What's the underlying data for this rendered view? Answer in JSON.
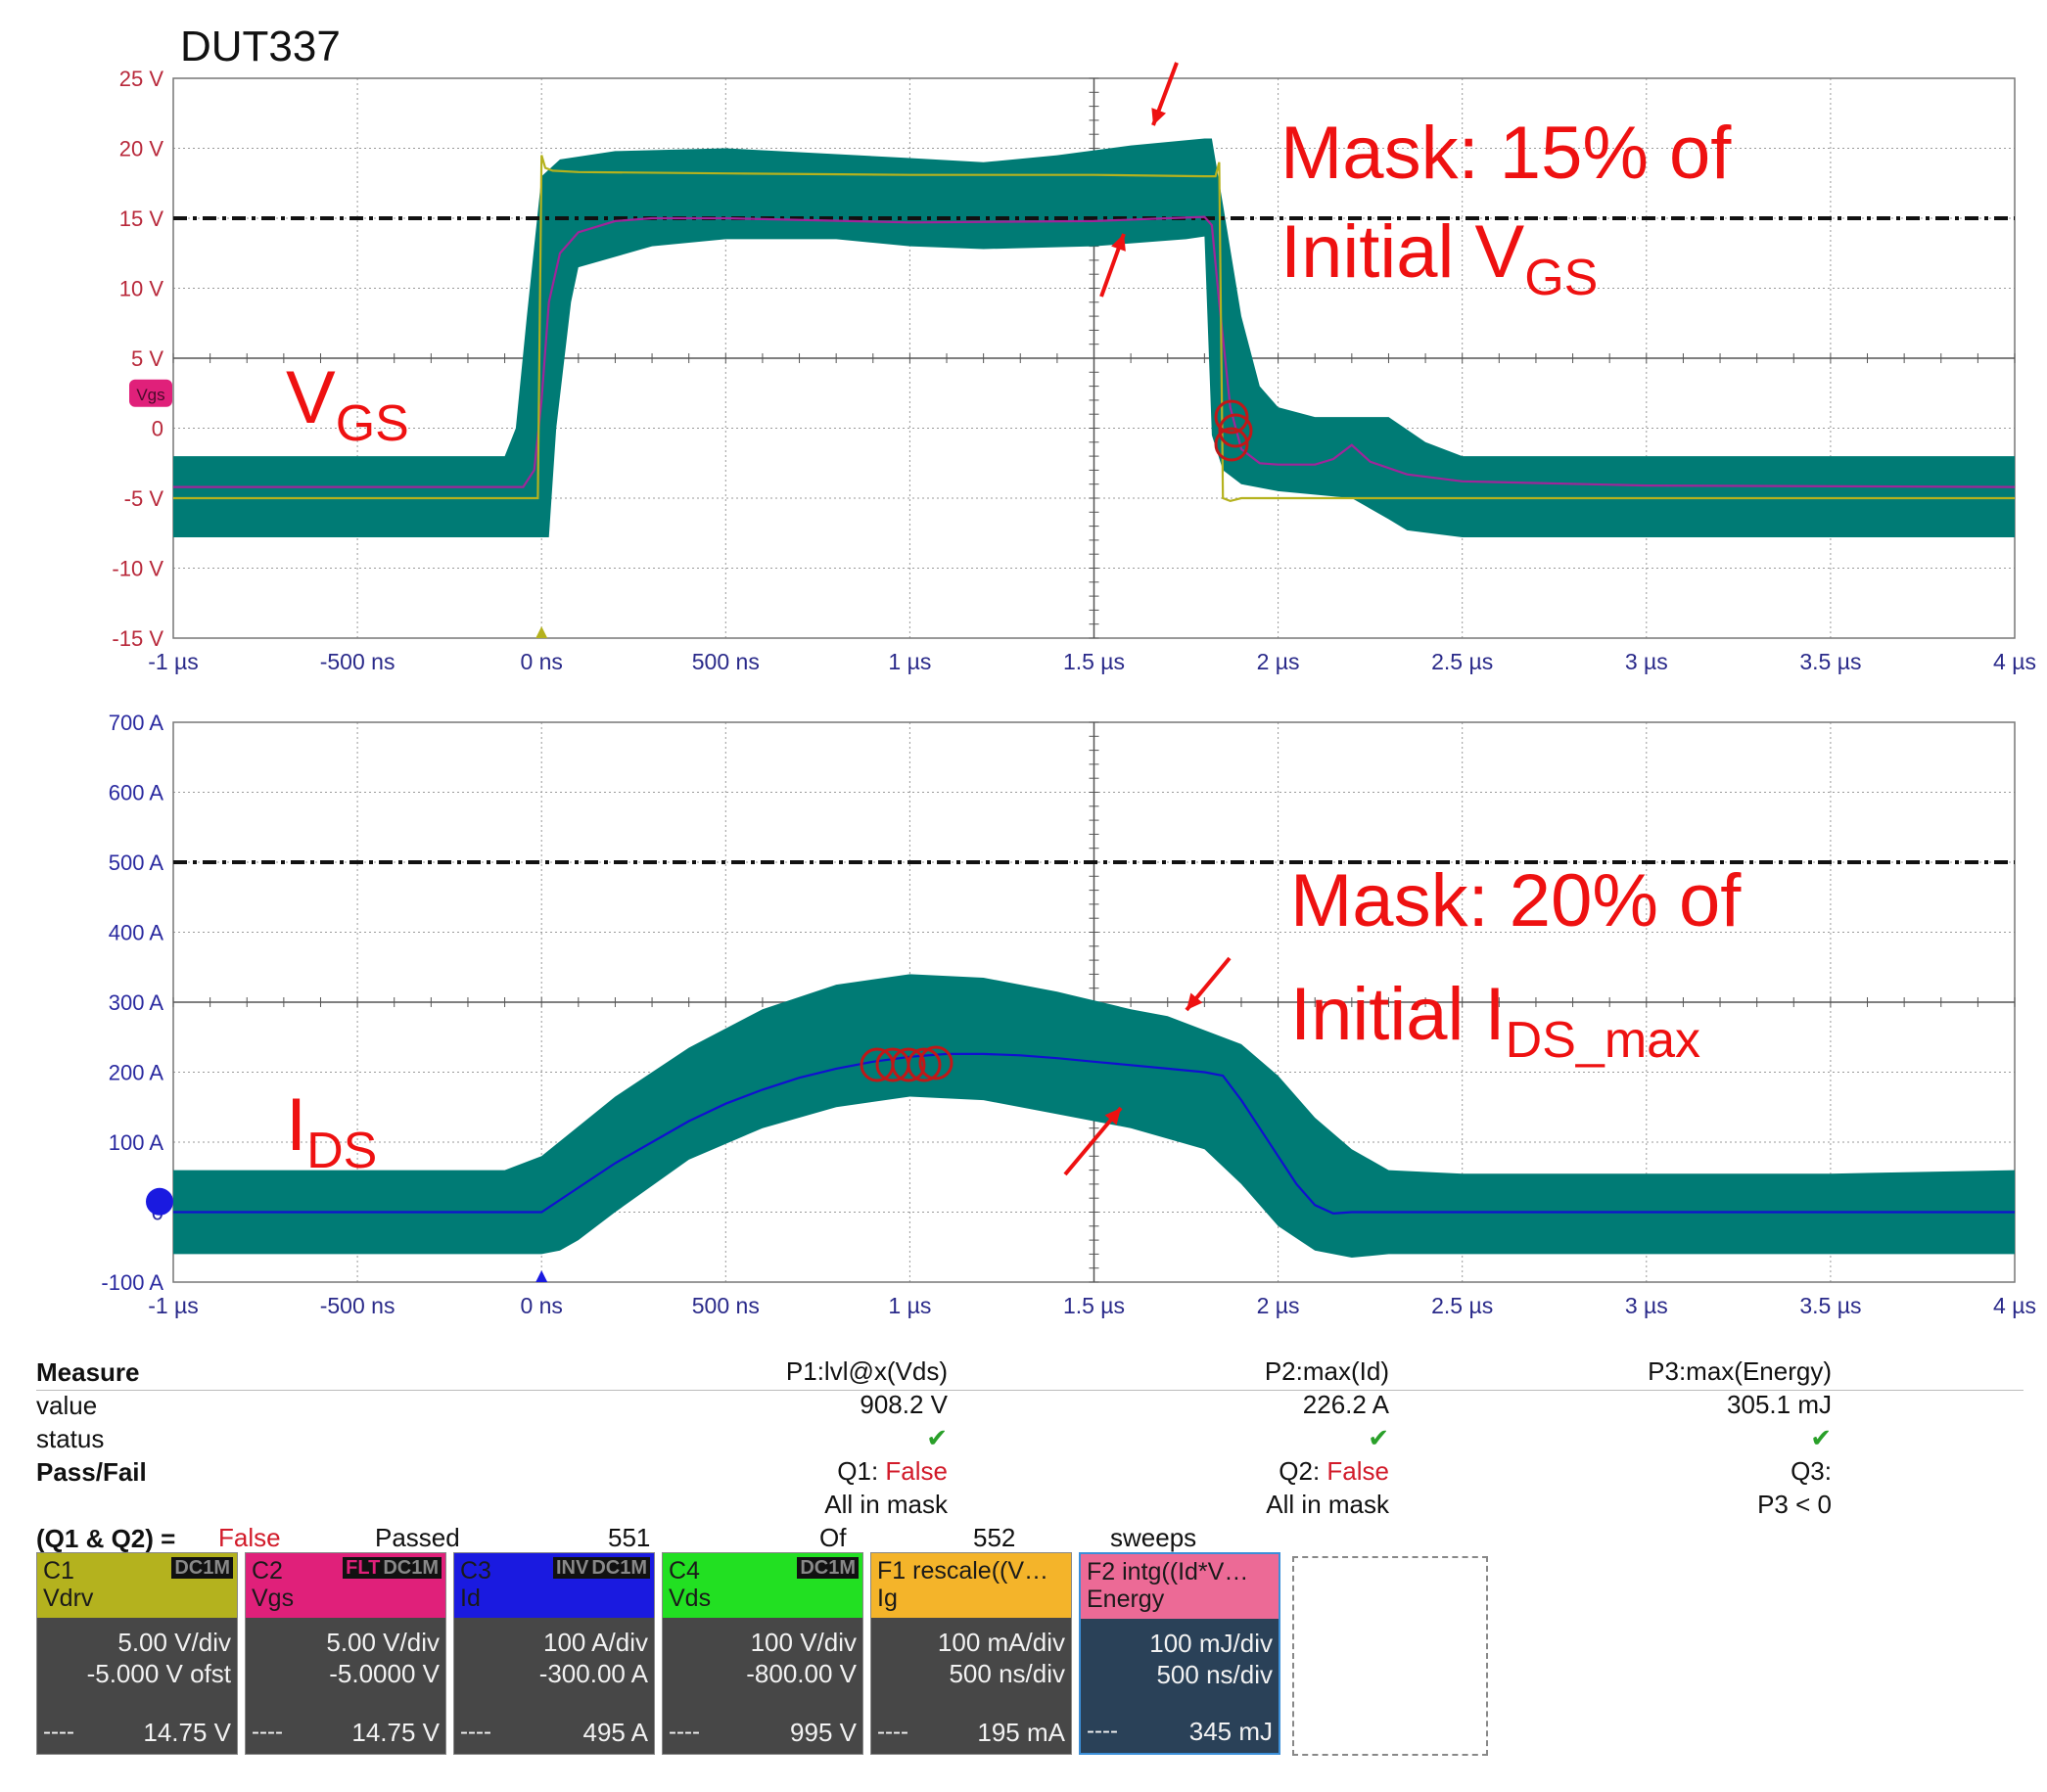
{
  "chart_data": [
    {
      "type": "line",
      "title": "DUT337",
      "y_tick_labels": [
        "25 V",
        "20 V",
        "15 V",
        "10 V",
        "5 V",
        "0",
        "-5 V",
        "-10 V",
        "-15 V"
      ],
      "y_tick_values": [
        25,
        20,
        15,
        10,
        5,
        0,
        -5,
        -10,
        -15
      ],
      "x_tick_labels": [
        "-1 µs",
        "-500 ns",
        "0 ns",
        "500 ns",
        "1 µs",
        "1.5 µs",
        "2 µs",
        "2.5 µs",
        "3 µs",
        "3.5 µs",
        "4 µs"
      ],
      "x_tick_values_us": [
        -1,
        -0.5,
        0,
        0.5,
        1,
        1.5,
        2,
        2.5,
        3,
        3.5,
        4
      ],
      "xlim_us": [
        -1,
        4
      ],
      "ylim": [
        -15,
        25
      ],
      "grid": true,
      "reference_line": 15,
      "channel_marker": "Vgs",
      "trace_label": "V",
      "trace_label_sub": "GS",
      "annotation_line1": "Mask: 15% of",
      "annotation_line2": "Initial V",
      "annotation_line2_sub": "GS",
      "mask_color": "#007b75",
      "series": [
        {
          "name": "Vgs",
          "color": "#a0259a",
          "x": [
            -1.0,
            -0.05,
            -0.02,
            0.0,
            0.02,
            0.05,
            0.1,
            0.2,
            0.3,
            0.5,
            1.0,
            1.5,
            1.7,
            1.8,
            1.82,
            1.84,
            1.87,
            1.9,
            1.95,
            2.0,
            2.1,
            2.15,
            2.2,
            2.25,
            2.35,
            2.5,
            3.0,
            4.0
          ],
          "y": [
            -4.2,
            -4.2,
            -3.0,
            2.0,
            9.0,
            12.5,
            14.0,
            14.8,
            15.0,
            15.0,
            14.7,
            14.8,
            15.0,
            15.1,
            14.5,
            9.0,
            1.5,
            -1.5,
            -2.5,
            -2.6,
            -2.6,
            -2.2,
            -1.2,
            -2.4,
            -3.3,
            -3.8,
            -4.1,
            -4.2
          ]
        },
        {
          "name": "Vdrv",
          "color": "#b5b21e",
          "x": [
            -1.0,
            -0.01,
            0.0,
            0.01,
            0.03,
            0.1,
            0.5,
            1.0,
            1.5,
            1.8,
            1.83,
            1.84,
            1.85,
            1.87,
            1.9,
            2.0,
            3.0,
            4.0
          ],
          "y": [
            -5.0,
            -5.0,
            19.5,
            18.6,
            18.4,
            18.3,
            18.2,
            18.1,
            18.1,
            18.0,
            18.0,
            19.0,
            -5.0,
            -5.2,
            -5.0,
            -5.0,
            -5.0,
            -5.0
          ]
        },
        {
          "name": "mask_upper",
          "color": "#007b75",
          "x": [
            -1.0,
            -0.1,
            -0.07,
            -0.04,
            0.0,
            0.05,
            0.2,
            0.5,
            1.0,
            1.2,
            1.4,
            1.6,
            1.8,
            1.82,
            1.85,
            1.9,
            1.95,
            2.0,
            2.1,
            2.3,
            2.4,
            2.5,
            3.0,
            4.0
          ],
          "y": [
            -2.0,
            -2.0,
            0.0,
            8.0,
            18.0,
            19.2,
            19.8,
            20.0,
            19.3,
            19.0,
            19.5,
            20.2,
            20.7,
            20.7,
            16.0,
            8.0,
            3.0,
            1.5,
            0.8,
            0.8,
            -1.0,
            -2.0,
            -2.0,
            -2.0
          ]
        },
        {
          "name": "mask_lower",
          "color": "#007b75",
          "x": [
            -1.0,
            0.0,
            0.02,
            0.04,
            0.08,
            0.1,
            0.3,
            0.5,
            0.8,
            1.0,
            1.2,
            1.5,
            1.75,
            1.8,
            1.82,
            1.85,
            1.9,
            2.0,
            2.2,
            2.3,
            2.35,
            2.5,
            3.0,
            4.0
          ],
          "y": [
            -7.8,
            -7.8,
            -7.8,
            0.0,
            9.0,
            11.5,
            13.0,
            13.5,
            13.5,
            13.0,
            12.8,
            13.0,
            13.5,
            13.7,
            -0.5,
            -3.0,
            -4.0,
            -4.5,
            -5.0,
            -6.5,
            -7.3,
            -7.8,
            -7.8,
            -7.8
          ]
        }
      ]
    },
    {
      "type": "line",
      "y_tick_labels": [
        "700 A",
        "600 A",
        "500 A",
        "400 A",
        "300 A",
        "200 A",
        "100 A",
        "0",
        "-100 A"
      ],
      "y_tick_values": [
        700,
        600,
        500,
        400,
        300,
        200,
        100,
        0,
        -100
      ],
      "x_tick_labels": [
        "-1 µs",
        "-500 ns",
        "0 ns",
        "500 ns",
        "1 µs",
        "1.5 µs",
        "2 µs",
        "2.5 µs",
        "3 µs",
        "3.5 µs",
        "4 µs"
      ],
      "x_tick_values_us": [
        -1,
        -0.5,
        0,
        0.5,
        1,
        1.5,
        2,
        2.5,
        3,
        3.5,
        4
      ],
      "xlim_us": [
        -1,
        4
      ],
      "ylim": [
        -100,
        700
      ],
      "grid": true,
      "reference_line": 500,
      "trace_label": "I",
      "trace_label_sub": "DS",
      "annotation_line1": "Mask: 20% of",
      "annotation_line2": "Initial I",
      "annotation_line2_sub": "DS_max",
      "mask_color": "#007b75",
      "series": [
        {
          "name": "Id",
          "color": "#1010d0",
          "x": [
            -1.0,
            0.0,
            0.1,
            0.2,
            0.3,
            0.4,
            0.5,
            0.6,
            0.7,
            0.8,
            0.9,
            1.0,
            1.1,
            1.2,
            1.3,
            1.4,
            1.5,
            1.6,
            1.7,
            1.8,
            1.85,
            1.9,
            1.95,
            2.0,
            2.05,
            2.1,
            2.15,
            2.2,
            2.3,
            3.0,
            4.0
          ],
          "y": [
            0,
            0,
            35,
            70,
            100,
            130,
            155,
            175,
            192,
            205,
            215,
            222,
            226,
            226,
            224,
            220,
            215,
            210,
            205,
            200,
            195,
            160,
            120,
            80,
            40,
            10,
            -2,
            0,
            0,
            0,
            0
          ]
        },
        {
          "name": "mask_upper",
          "color": "#007b75",
          "x": [
            -1.0,
            -0.1,
            0.0,
            0.2,
            0.4,
            0.6,
            0.8,
            1.0,
            1.2,
            1.4,
            1.6,
            1.7,
            1.8,
            1.9,
            2.0,
            2.1,
            2.2,
            2.3,
            2.5,
            3.0,
            3.5,
            4.0
          ],
          "y": [
            60,
            60,
            80,
            165,
            235,
            290,
            325,
            340,
            335,
            315,
            290,
            280,
            260,
            240,
            195,
            135,
            90,
            60,
            55,
            55,
            55,
            60
          ]
        },
        {
          "name": "mask_lower",
          "color": "#007b75",
          "x": [
            -1.0,
            0.0,
            0.05,
            0.1,
            0.2,
            0.4,
            0.6,
            0.8,
            1.0,
            1.2,
            1.4,
            1.6,
            1.8,
            1.9,
            2.0,
            2.1,
            2.2,
            2.3,
            2.5,
            3.0,
            3.5,
            4.0
          ],
          "y": [
            -60,
            -60,
            -55,
            -40,
            0,
            75,
            120,
            150,
            165,
            160,
            140,
            120,
            90,
            40,
            -20,
            -55,
            -65,
            -60,
            -60,
            -60,
            -60,
            -60
          ]
        }
      ]
    }
  ],
  "measure": {
    "title": "Measure",
    "rows": [
      "value",
      "status",
      "Pass/Fail"
    ],
    "p1": {
      "name": "P1:lvl@x(Vds)",
      "value": "908.2 V",
      "q": "Q1:",
      "q_result": "False",
      "q_note": "All in mask"
    },
    "p2": {
      "name": "P2:max(Id)",
      "value": "226.2 A",
      "q": "Q2:",
      "q_result": "False",
      "q_note": "All in mask"
    },
    "p3": {
      "name": "P3:max(Energy)",
      "value": "305.1 mJ",
      "q": "Q3:",
      "q_note": "P3 < 0"
    },
    "status_mark": "✔",
    "summary": {
      "expr": "(Q1 & Q2) =",
      "result": "False",
      "passed_label": "Passed",
      "count1": "551",
      "of": "Of",
      "count2": "552",
      "sweeps": "sweeps"
    }
  },
  "channels": [
    {
      "id": "C1",
      "label": "Vdrv",
      "tags": [
        "DC1M"
      ],
      "color": "#b4b21e",
      "scale": "5.00 V/div",
      "offset": "-5.000 V ofst",
      "dash": "----",
      "value": "14.75 V"
    },
    {
      "id": "C2",
      "label": "Vgs",
      "tags": [
        "FLT",
        "DC1M"
      ],
      "color": "#e0207a",
      "scale": "5.00 V/div",
      "offset": "-5.0000 V",
      "dash": "----",
      "value": "14.75 V"
    },
    {
      "id": "C3",
      "label": "Id",
      "tags": [
        "INV",
        "DC1M"
      ],
      "color": "#1a1ae0",
      "scale": "100 A/div",
      "offset": "-300.00 A",
      "dash": "----",
      "value": "495 A"
    },
    {
      "id": "C4",
      "label": "Vds",
      "tags": [
        "DC1M"
      ],
      "color": "#22e022",
      "scale": "100 V/div",
      "offset": "-800.00 V",
      "dash": "----",
      "value": "995 V"
    },
    {
      "id": "F1",
      "label": "Ig",
      "func": "rescale((V…",
      "tags": [],
      "color": "#f4b42a",
      "scale": "100 mA/div",
      "offset": "500 ns/div",
      "dash": "----",
      "value": "195 mA"
    },
    {
      "id": "F2",
      "label": "Energy",
      "func": "intg((Id*V…",
      "tags": [],
      "color": "#ec6a96",
      "scale": "100 mJ/div",
      "offset": "500 ns/div",
      "dash": "----",
      "value": "345 mJ"
    }
  ]
}
